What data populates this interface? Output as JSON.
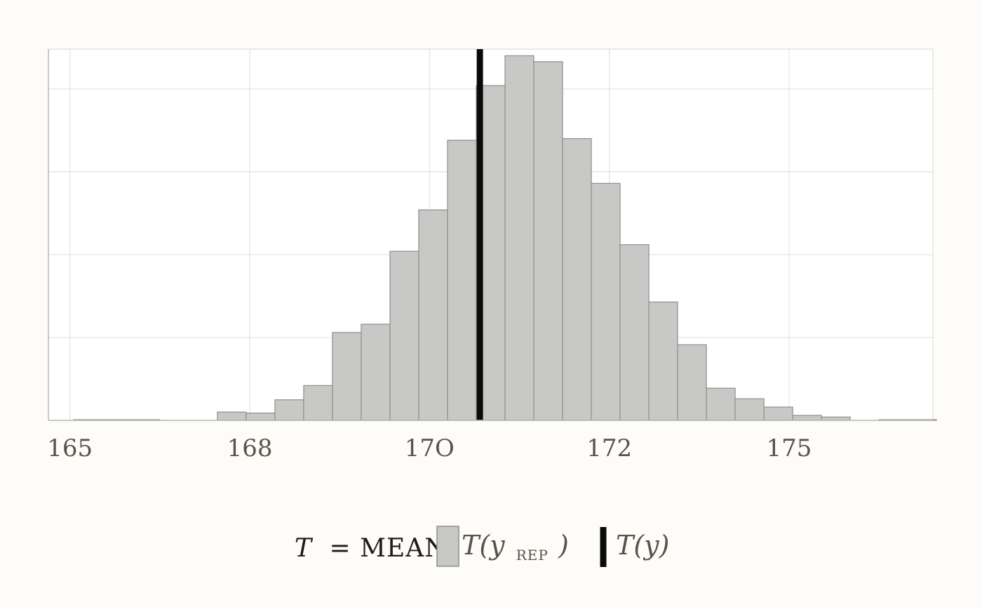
{
  "chart_data": {
    "type": "histogram",
    "title": "",
    "xlabel": "",
    "ylabel": "",
    "xlim": [
      164.7,
      177.0
    ],
    "ylim": [
      0,
      1120
    ],
    "x_ticks": [
      165,
      167.5,
      170,
      172.5,
      175
    ],
    "x_tick_labels": [
      "165",
      "168",
      "17O",
      "172",
      "175"
    ],
    "y_gridlines": [
      250,
      500,
      750,
      1000
    ],
    "grid": true,
    "bin_edges": [
      165.05,
      165.45,
      165.85,
      166.25,
      166.65,
      167.05,
      167.45,
      167.85,
      168.25,
      168.65,
      169.05,
      169.45,
      169.85,
      170.25,
      170.65,
      171.05,
      171.45,
      171.85,
      172.25,
      172.65,
      173.05,
      173.45,
      173.85,
      174.25,
      174.65,
      175.05,
      175.45,
      175.85,
      176.25,
      176.65,
      177.05
    ],
    "counts": [
      2,
      2,
      2,
      0,
      0,
      25,
      22,
      62,
      105,
      265,
      290,
      510,
      635,
      845,
      1010,
      1100,
      1082,
      850,
      715,
      530,
      357,
      228,
      97,
      65,
      40,
      15,
      10,
      0,
      2,
      2
    ],
    "observed_value": 170.7,
    "legend": {
      "placement": "bottom-center",
      "title_stat": "T",
      "title_rest": "= MEAN",
      "entries": [
        {
          "label": "T(y",
          "subscript": "REP",
          "close": ")",
          "kind": "bar"
        },
        {
          "label": "T(y)",
          "kind": "line"
        }
      ]
    },
    "colors": {
      "bar_fill": "#c8c8c6",
      "bar_stroke": "#8e8e8c",
      "observed_line": "#0a0a0a",
      "grid": "#e3e3e0",
      "axis": "#b7b7b5",
      "background": "#fdfcf9",
      "panel": "#ffffff"
    }
  }
}
